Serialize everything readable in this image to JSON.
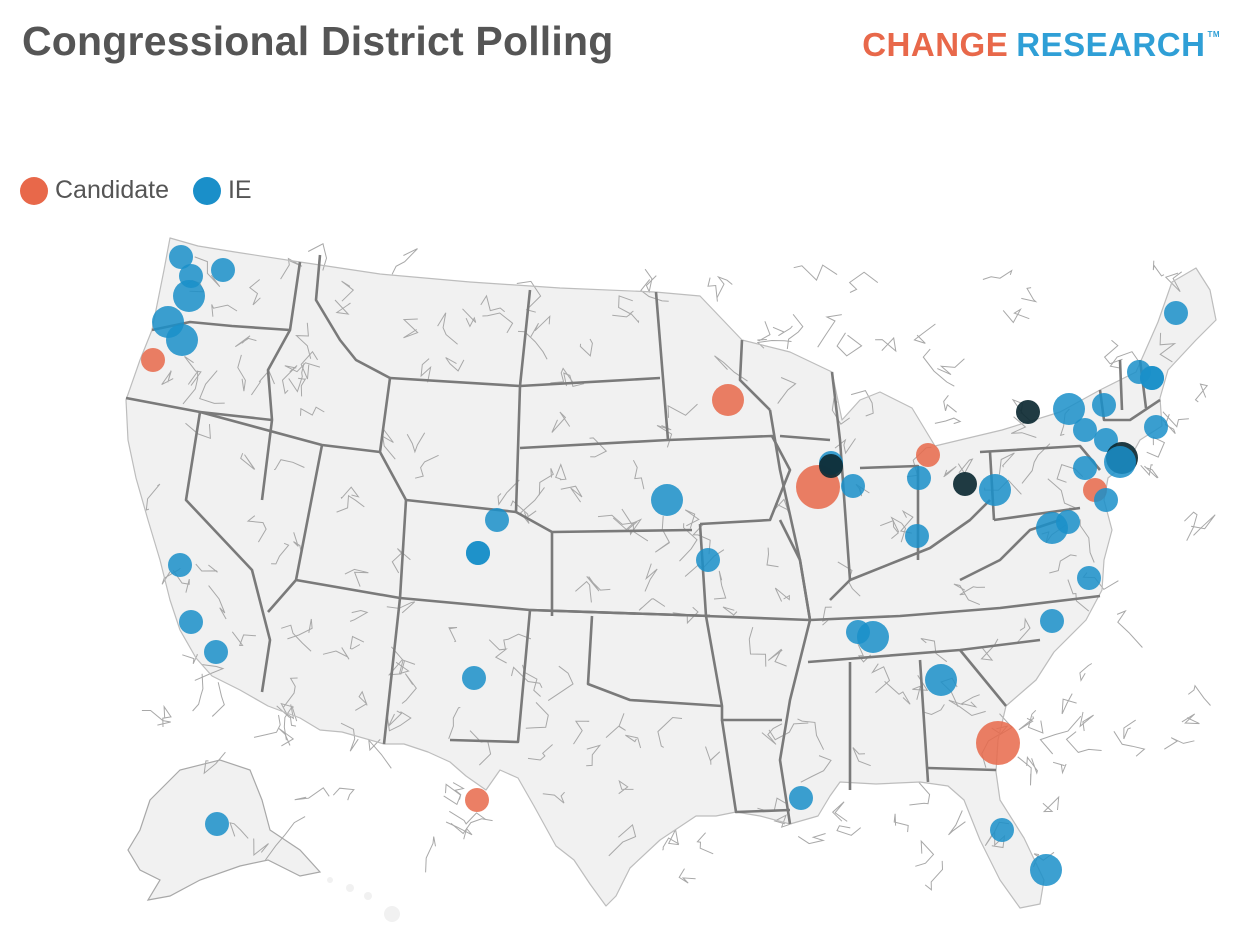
{
  "title": "Congressional District Polling",
  "brand": {
    "part1": "CHANGE",
    "part2": "RESEARCH",
    "trademark": "TM"
  },
  "colors": {
    "candidate": "#e8684a",
    "ie": "#1a8fc9",
    "overlap": "#0d2a33",
    "land": "#f1f1f1",
    "state_border": "#7a7a7a",
    "district_border": "#a8a8a8"
  },
  "legend": [
    {
      "label": "Candidate",
      "type": "candidate"
    },
    {
      "label": "IE",
      "type": "ie"
    }
  ],
  "polls": [
    {
      "type": "ie",
      "place": "Washington-Bellingham",
      "size": 2
    },
    {
      "type": "ie",
      "place": "Washington-Everett",
      "size": 2
    },
    {
      "type": "ie",
      "place": "Washington-Spokane area",
      "size": 2
    },
    {
      "type": "ie",
      "place": "Washington-Seattle",
      "size": 3
    },
    {
      "type": "ie",
      "place": "Washington-SW",
      "size": 3
    },
    {
      "type": "ie",
      "place": "Oregon-Portland",
      "size": 3
    },
    {
      "type": "candidate",
      "place": "Oregon-Coast",
      "size": 2
    },
    {
      "type": "ie",
      "place": "California-Sacramento",
      "size": 2
    },
    {
      "type": "ie",
      "place": "California-Central Valley",
      "size": 2
    },
    {
      "type": "ie",
      "place": "California-Fresno",
      "size": 2
    },
    {
      "type": "ie",
      "place": "Utah",
      "size": 2
    },
    {
      "type": "ie",
      "place": "Colorado-North",
      "size": 2
    },
    {
      "type": "ie",
      "place": "Colorado-Central",
      "size": 2
    },
    {
      "type": "ie",
      "place": "New Mexico",
      "size": 2
    },
    {
      "type": "candidate",
      "place": "Texas-West",
      "size": 2
    },
    {
      "type": "ie",
      "place": "Alaska",
      "size": 2
    },
    {
      "type": "ie",
      "place": "Iowa-West",
      "size": 3
    },
    {
      "type": "ie",
      "place": "Kansas-East",
      "size": 2
    },
    {
      "type": "candidate",
      "place": "Minnesota-Minneapolis",
      "size": 3
    },
    {
      "type": "candidate",
      "place": "Illinois-Chicago",
      "size": 4
    },
    {
      "type": "ie",
      "place": "Michigan-West",
      "size": 2
    },
    {
      "type": "ie",
      "place": "Indiana-North",
      "size": 2
    },
    {
      "type": "overlap",
      "place": "Michigan-SW",
      "size": 2
    },
    {
      "type": "candidate",
      "place": "Michigan-Detroit",
      "size": 2
    },
    {
      "type": "ie",
      "place": "Ohio-North",
      "size": 2
    },
    {
      "type": "overlap",
      "place": "Ohio-Cleveland",
      "size": 2
    },
    {
      "type": "ie",
      "place": "Pennsylvania-Pittsburgh",
      "size": 3
    },
    {
      "type": "ie",
      "place": "Ohio-Cincinnati",
      "size": 2
    },
    {
      "type": "overlap",
      "place": "New York-Rochester",
      "size": 2
    },
    {
      "type": "ie",
      "place": "New York-Syracuse",
      "size": 3
    },
    {
      "type": "ie",
      "place": "New York-Albany",
      "size": 2
    },
    {
      "type": "ie",
      "place": "New York-Hudson Valley",
      "size": 2
    },
    {
      "type": "ie",
      "place": "New York-Lower Hudson",
      "size": 2
    },
    {
      "type": "ie",
      "place": "Connecticut",
      "size": 2
    },
    {
      "type": "ie",
      "place": "Massachusetts-Boston",
      "size": 2
    },
    {
      "type": "ie",
      "place": "New Hampshire",
      "size": 2
    },
    {
      "type": "ie",
      "place": "New Hampshire-Seacoast",
      "size": 2
    },
    {
      "type": "ie",
      "place": "Maine",
      "size": 2
    },
    {
      "type": "overlap",
      "place": "New Jersey-North",
      "size": 3
    },
    {
      "type": "ie",
      "place": "New Jersey-Central",
      "size": 3
    },
    {
      "type": "ie",
      "place": "Pennsylvania-Central",
      "size": 2
    },
    {
      "type": "candidate",
      "place": "Pennsylvania-Philadelphia",
      "size": 2
    },
    {
      "type": "ie",
      "place": "New Jersey-South",
      "size": 2
    },
    {
      "type": "ie",
      "place": "Virginia-North",
      "size": 3
    },
    {
      "type": "ie",
      "place": "Virginia-Richmond",
      "size": 2
    },
    {
      "type": "ie",
      "place": "Virginia-Beach",
      "size": 2
    },
    {
      "type": "ie",
      "place": "Kentucky-Louisville",
      "size": 2
    },
    {
      "type": "ie",
      "place": "Tennessee-Nashville",
      "size": 3
    },
    {
      "type": "ie",
      "place": "North Carolina-Raleigh",
      "size": 2
    },
    {
      "type": "ie",
      "place": "Georgia-Atlanta",
      "size": 3
    },
    {
      "type": "candidate",
      "place": "Georgia-Coast",
      "size": 4
    },
    {
      "type": "ie",
      "place": "Louisiana-New Orleans",
      "size": 2
    },
    {
      "type": "ie",
      "place": "Florida-Tampa",
      "size": 2
    },
    {
      "type": "ie",
      "place": "Florida-Miami",
      "size": 3
    }
  ]
}
